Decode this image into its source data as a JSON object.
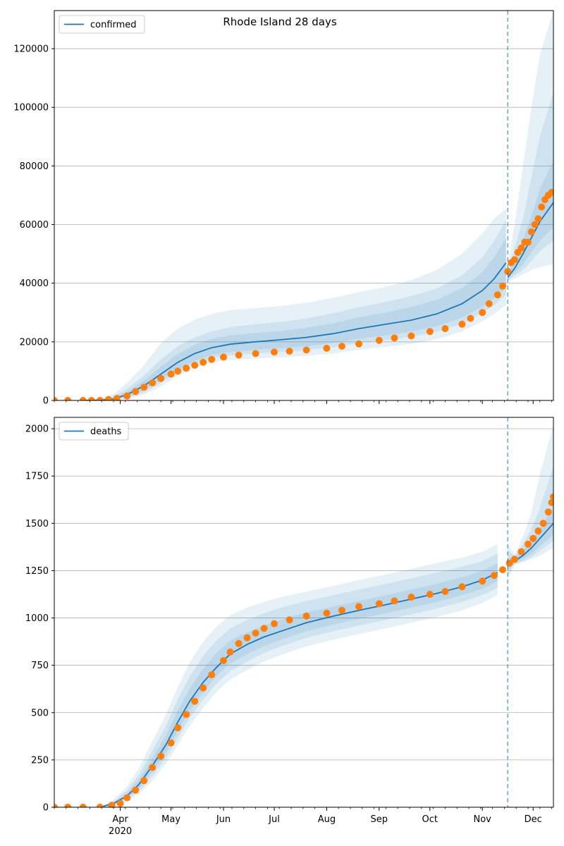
{
  "title": "Rhode Island 28 days",
  "colors": {
    "model": "#1f77b4",
    "observed": "#ff7f0e",
    "band": "#1f77b4",
    "grid": "#b0b0b0",
    "forecast_line": "#1f77b4"
  },
  "x_axis": {
    "start": "2020-02-22",
    "end": "2020-12-13",
    "forecast_start": "2020-11-16",
    "month_labels": [
      {
        "date": "2020-04-01",
        "label": "Apr",
        "sublabel": "2020"
      },
      {
        "date": "2020-05-01",
        "label": "May"
      },
      {
        "date": "2020-06-01",
        "label": "Jun"
      },
      {
        "date": "2020-07-01",
        "label": "Jul"
      },
      {
        "date": "2020-08-01",
        "label": "Aug"
      },
      {
        "date": "2020-09-01",
        "label": "Sep"
      },
      {
        "date": "2020-10-01",
        "label": "Oct"
      },
      {
        "date": "2020-11-01",
        "label": "Nov"
      },
      {
        "date": "2020-12-01",
        "label": "Dec"
      }
    ]
  },
  "chart_data": [
    {
      "type": "line",
      "legend": "confirmed",
      "legend_position": "top-left",
      "grid": "horizontal",
      "ylim": [
        0,
        133000
      ],
      "yticks": [
        0,
        20000,
        40000,
        60000,
        80000,
        100000,
        120000
      ],
      "model": {
        "x": [
          "2020-03-10",
          "2020-03-20",
          "2020-03-28",
          "2020-04-05",
          "2020-04-15",
          "2020-04-25",
          "2020-05-05",
          "2020-05-15",
          "2020-05-25",
          "2020-06-05",
          "2020-06-20",
          "2020-07-05",
          "2020-07-20",
          "2020-08-05",
          "2020-08-20",
          "2020-09-05",
          "2020-09-20",
          "2020-10-05",
          "2020-10-20",
          "2020-11-01",
          "2020-11-08",
          "2020-11-15",
          "2020-11-16",
          "2020-11-20",
          "2020-11-25",
          "2020-11-30",
          "2020-12-05",
          "2020-12-13"
        ],
        "y": [
          0,
          100,
          500,
          2000,
          5000,
          9000,
          13000,
          16000,
          18000,
          19200,
          20000,
          20700,
          21500,
          22800,
          24500,
          26000,
          27400,
          29500,
          33000,
          37500,
          41500,
          47000,
          42000,
          45000,
          50000,
          55500,
          61000,
          67500
        ],
        "band_inner_lo": [
          0,
          50,
          300,
          1300,
          3500,
          7000,
          10500,
          13500,
          15500,
          16500,
          17300,
          17800,
          18500,
          19600,
          21000,
          22200,
          23500,
          25300,
          28200,
          32000,
          35000,
          38500,
          41500,
          43500,
          46500,
          50500,
          54500,
          59000
        ],
        "band_inner_hi": [
          0,
          200,
          900,
          3000,
          6800,
          11500,
          15800,
          19000,
          21000,
          22200,
          23000,
          23700,
          24800,
          26300,
          28300,
          30000,
          31800,
          34300,
          38300,
          43800,
          48800,
          55500,
          43000,
          48000,
          55000,
          63000,
          72000,
          82000
        ],
        "band_mid_lo": [
          0,
          20,
          200,
          900,
          2800,
          6000,
          9500,
          12500,
          14500,
          15400,
          16000,
          16500,
          17200,
          18200,
          19500,
          20600,
          21700,
          23400,
          26200,
          29800,
          32500,
          36000,
          41000,
          42500,
          44500,
          47500,
          51000,
          54500
        ],
        "band_mid_hi": [
          0,
          350,
          1400,
          4000,
          8500,
          14000,
          18500,
          21500,
          23500,
          25000,
          26000,
          26800,
          28000,
          29800,
          31800,
          33600,
          35600,
          38200,
          42700,
          48800,
          54500,
          61500,
          44000,
          52000,
          62000,
          76000,
          90000,
          105000
        ],
        "band_outer_lo": [
          0,
          0,
          80,
          500,
          2000,
          4800,
          8200,
          11200,
          13000,
          13800,
          14300,
          14700,
          15200,
          16100,
          17300,
          18300,
          19300,
          20800,
          23500,
          27000,
          29500,
          32500,
          40500,
          41500,
          43000,
          44500,
          45500,
          46500
        ],
        "band_outer_hi": [
          0,
          600,
          2200,
          6000,
          12000,
          19500,
          24500,
          27500,
          29500,
          30800,
          31500,
          32200,
          33300,
          35000,
          37000,
          38800,
          41000,
          44500,
          50000,
          57000,
          62000,
          65500,
          45500,
          60000,
          80000,
          100000,
          118000,
          133000
        ]
      },
      "observed": {
        "x": [
          "2020-02-22",
          "2020-03-01",
          "2020-03-10",
          "2020-03-15",
          "2020-03-20",
          "2020-03-25",
          "2020-03-30",
          "2020-04-05",
          "2020-04-10",
          "2020-04-15",
          "2020-04-20",
          "2020-04-25",
          "2020-05-01",
          "2020-05-05",
          "2020-05-10",
          "2020-05-15",
          "2020-05-20",
          "2020-05-25",
          "2020-06-01",
          "2020-06-10",
          "2020-06-20",
          "2020-07-01",
          "2020-07-10",
          "2020-07-20",
          "2020-08-01",
          "2020-08-10",
          "2020-08-20",
          "2020-09-01",
          "2020-09-10",
          "2020-09-20",
          "2020-10-01",
          "2020-10-10",
          "2020-10-20",
          "2020-10-25",
          "2020-11-01",
          "2020-11-05",
          "2020-11-10",
          "2020-11-13",
          "2020-11-16",
          "2020-11-18",
          "2020-11-20",
          "2020-11-22",
          "2020-11-24",
          "2020-11-26",
          "2020-11-28",
          "2020-11-30",
          "2020-12-02",
          "2020-12-04",
          "2020-12-06",
          "2020-12-08",
          "2020-12-10",
          "2020-12-12"
        ],
        "y": [
          0,
          0,
          0,
          0,
          0,
          300,
          700,
          1500,
          3000,
          4500,
          6000,
          7500,
          9000,
          10000,
          11000,
          12000,
          13000,
          14000,
          14800,
          15500,
          16000,
          16500,
          16800,
          17200,
          17800,
          18500,
          19300,
          20500,
          21300,
          22000,
          23500,
          24500,
          26000,
          28000,
          30000,
          33000,
          36000,
          39000,
          44000,
          47000,
          48000,
          50500,
          52000,
          54000,
          54000,
          57500,
          60000,
          62000,
          66000,
          68500,
          70000,
          71000
        ]
      }
    },
    {
      "type": "line",
      "legend": "deaths",
      "legend_position": "top-left",
      "grid": "horizontal",
      "ylim": [
        0,
        2060
      ],
      "yticks": [
        0,
        250,
        500,
        750,
        1000,
        1250,
        1500,
        1750,
        2000
      ],
      "model": {
        "x": [
          "2020-03-20",
          "2020-03-28",
          "2020-04-05",
          "2020-04-12",
          "2020-04-20",
          "2020-04-28",
          "2020-05-05",
          "2020-05-12",
          "2020-05-20",
          "2020-05-28",
          "2020-06-05",
          "2020-06-15",
          "2020-06-25",
          "2020-07-05",
          "2020-07-20",
          "2020-08-05",
          "2020-08-20",
          "2020-09-05",
          "2020-09-20",
          "2020-10-05",
          "2020-10-20",
          "2020-11-01",
          "2020-11-10",
          "2020-11-16",
          "2020-11-20",
          "2020-11-25",
          "2020-11-30",
          "2020-12-05",
          "2020-12-13"
        ],
        "y": [
          0,
          20,
          60,
          120,
          220,
          330,
          450,
          560,
          660,
          740,
          810,
          860,
          900,
          930,
          975,
          1010,
          1040,
          1070,
          1100,
          1130,
          1165,
          1200,
          1240,
          1280,
          1300,
          1330,
          1370,
          1420,
          1500
        ],
        "band_inner_lo": [
          0,
          15,
          50,
          100,
          190,
          290,
          400,
          510,
          610,
          695,
          760,
          810,
          850,
          885,
          930,
          965,
          995,
          1025,
          1055,
          1085,
          1120,
          1155,
          1195,
          1250,
          1290,
          1310,
          1340,
          1380,
          1440
        ],
        "band_inner_hi": [
          0,
          25,
          75,
          145,
          260,
          380,
          510,
          625,
          735,
          815,
          880,
          925,
          960,
          990,
          1030,
          1060,
          1090,
          1120,
          1150,
          1180,
          1215,
          1250,
          1290,
          1320,
          1315,
          1360,
          1410,
          1475,
          1580
        ],
        "band_mid_lo": [
          0,
          10,
          40,
          85,
          165,
          260,
          365,
          470,
          570,
          655,
          720,
          770,
          815,
          850,
          895,
          930,
          960,
          990,
          1020,
          1050,
          1085,
          1120,
          1160,
          1230,
          1285,
          1300,
          1320,
          1355,
          1410
        ],
        "band_mid_hi": [
          0,
          30,
          90,
          170,
          300,
          430,
          570,
          690,
          800,
          880,
          945,
          990,
          1025,
          1055,
          1090,
          1120,
          1150,
          1180,
          1210,
          1240,
          1270,
          1300,
          1340,
          1360,
          1325,
          1390,
          1470,
          1580,
          1800
        ],
        "band_outer_lo": [
          0,
          5,
          30,
          70,
          140,
          230,
          330,
          430,
          525,
          610,
          675,
          725,
          770,
          805,
          850,
          885,
          915,
          945,
          975,
          1005,
          1040,
          1080,
          1120,
          1200,
          1280,
          1295,
          1310,
          1330,
          1370
        ],
        "band_outer_hi": [
          0,
          40,
          110,
          205,
          350,
          490,
          635,
          765,
          875,
          955,
          1015,
          1055,
          1085,
          1110,
          1140,
          1170,
          1200,
          1230,
          1260,
          1290,
          1320,
          1350,
          1390,
          1400,
          1335,
          1430,
          1560,
          1760,
          2020
        ]
      },
      "observed": {
        "x": [
          "2020-02-22",
          "2020-03-01",
          "2020-03-10",
          "2020-03-20",
          "2020-03-27",
          "2020-04-01",
          "2020-04-05",
          "2020-04-10",
          "2020-04-15",
          "2020-04-20",
          "2020-04-25",
          "2020-05-01",
          "2020-05-05",
          "2020-05-10",
          "2020-05-15",
          "2020-05-20",
          "2020-05-25",
          "2020-06-01",
          "2020-06-05",
          "2020-06-10",
          "2020-06-15",
          "2020-06-20",
          "2020-06-25",
          "2020-07-01",
          "2020-07-10",
          "2020-07-20",
          "2020-08-01",
          "2020-08-10",
          "2020-08-20",
          "2020-09-01",
          "2020-09-10",
          "2020-09-20",
          "2020-10-01",
          "2020-10-10",
          "2020-10-20",
          "2020-11-01",
          "2020-11-08",
          "2020-11-13",
          "2020-11-17",
          "2020-11-20",
          "2020-11-24",
          "2020-11-28",
          "2020-12-01",
          "2020-12-04",
          "2020-12-07",
          "2020-12-10",
          "2020-12-12",
          "2020-12-13"
        ],
        "y": [
          0,
          0,
          0,
          0,
          10,
          20,
          50,
          90,
          140,
          210,
          270,
          340,
          420,
          490,
          560,
          630,
          700,
          775,
          820,
          865,
          895,
          920,
          945,
          970,
          990,
          1010,
          1025,
          1040,
          1060,
          1075,
          1090,
          1110,
          1125,
          1140,
          1165,
          1195,
          1225,
          1255,
          1290,
          1310,
          1350,
          1390,
          1420,
          1460,
          1500,
          1560,
          1610,
          1640
        ]
      }
    }
  ]
}
